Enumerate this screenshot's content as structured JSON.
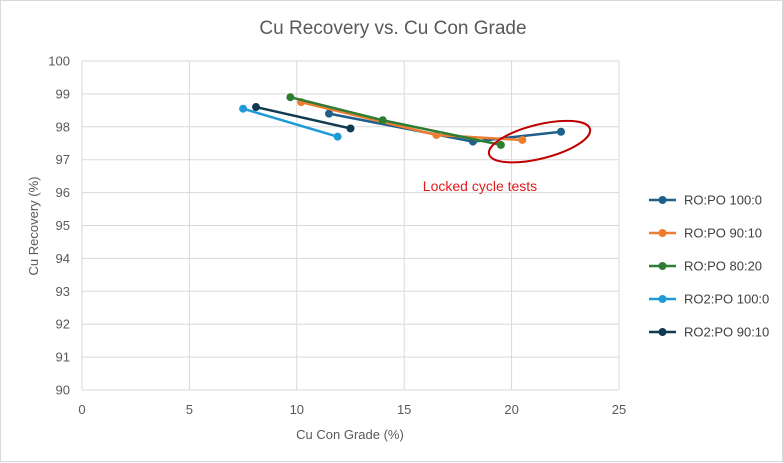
{
  "chart_data": {
    "type": "line",
    "title": "Cu Recovery vs. Cu Con Grade",
    "xlabel": "Cu Con Grade (%)",
    "ylabel": "Cu Recovery (%)",
    "xlim": [
      0,
      25
    ],
    "ylim": [
      90,
      100
    ],
    "x_ticks": [
      0,
      5,
      10,
      15,
      20,
      25
    ],
    "y_ticks": [
      90,
      91,
      92,
      93,
      94,
      95,
      96,
      97,
      98,
      99,
      100
    ],
    "grid": true,
    "legend_position": "right",
    "series": [
      {
        "name": "RO:PO 100:0",
        "color": "#1f5f8b",
        "x": [
          11.5,
          18.2,
          22.3
        ],
        "y": [
          98.4,
          97.55,
          97.85
        ]
      },
      {
        "name": "RO:PO 90:10",
        "color": "#ed7d31",
        "x": [
          10.2,
          16.5,
          20.5
        ],
        "y": [
          98.75,
          97.75,
          97.6
        ]
      },
      {
        "name": "RO:PO 80:20",
        "color": "#2e7d32",
        "x": [
          9.7,
          14.0,
          19.5
        ],
        "y": [
          98.9,
          98.2,
          97.45
        ]
      },
      {
        "name": "RO2:PO 100:0",
        "color": "#1e9ad6",
        "x": [
          7.5,
          11.9
        ],
        "y": [
          98.55,
          97.7
        ]
      },
      {
        "name": "RO2:PO 90:10",
        "color": "#0f3a52",
        "x": [
          8.1,
          12.5
        ],
        "y": [
          98.6,
          97.95
        ]
      }
    ],
    "annotation": {
      "text": "Locked cycle tests",
      "color": "#e31a1c",
      "ellipse_center": [
        21.3,
        97.55
      ]
    }
  }
}
